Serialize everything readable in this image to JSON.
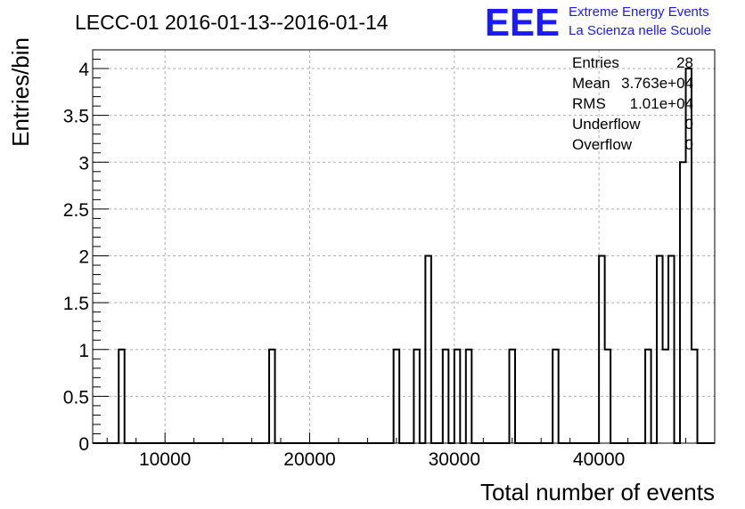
{
  "title": "LECC-01 2016-01-13--2016-01-14",
  "logo": {
    "mark": "EEE",
    "line1": "Extreme Energy Events",
    "line2": "La Scienza nelle Scuole",
    "color": "#1a1aff"
  },
  "stats": {
    "labels": [
      "Entries",
      "Mean",
      "RMS",
      "Underflow",
      "Overflow"
    ],
    "values": [
      "28",
      "3.763e+04",
      "1.01e+04",
      "0",
      "0"
    ]
  },
  "chart_data": {
    "type": "bar",
    "histogram": true,
    "xlabel": "Total number of events",
    "ylabel": "Entries/bin",
    "xlim": [
      5000,
      48000
    ],
    "ylim": [
      0,
      4.2
    ],
    "bin_width": 400,
    "grid": true,
    "x_ticks": [
      {
        "value": 10000,
        "label": "10000"
      },
      {
        "value": 20000,
        "label": "20000"
      },
      {
        "value": 30000,
        "label": "30000"
      },
      {
        "value": 40000,
        "label": "40000"
      }
    ],
    "y_ticks": [
      {
        "value": 0,
        "label": "0"
      },
      {
        "value": 0.5,
        "label": "0.5"
      },
      {
        "value": 1,
        "label": "1"
      },
      {
        "value": 1.5,
        "label": "1.5"
      },
      {
        "value": 2,
        "label": "2"
      },
      {
        "value": 2.5,
        "label": "2.5"
      },
      {
        "value": 3,
        "label": "3"
      },
      {
        "value": 3.5,
        "label": "3.5"
      },
      {
        "value": 4,
        "label": "4"
      }
    ],
    "bins": [
      {
        "x": 6800,
        "count": 1
      },
      {
        "x": 17200,
        "count": 1
      },
      {
        "x": 25800,
        "count": 1
      },
      {
        "x": 27200,
        "count": 1
      },
      {
        "x": 28000,
        "count": 2
      },
      {
        "x": 29200,
        "count": 1
      },
      {
        "x": 30000,
        "count": 1
      },
      {
        "x": 30800,
        "count": 1
      },
      {
        "x": 33800,
        "count": 1
      },
      {
        "x": 36800,
        "count": 1
      },
      {
        "x": 40000,
        "count": 2
      },
      {
        "x": 40400,
        "count": 1
      },
      {
        "x": 43200,
        "count": 1
      },
      {
        "x": 44000,
        "count": 2
      },
      {
        "x": 44400,
        "count": 1
      },
      {
        "x": 44800,
        "count": 2
      },
      {
        "x": 45600,
        "count": 3
      },
      {
        "x": 46000,
        "count": 4
      },
      {
        "x": 46400,
        "count": 1
      }
    ]
  }
}
